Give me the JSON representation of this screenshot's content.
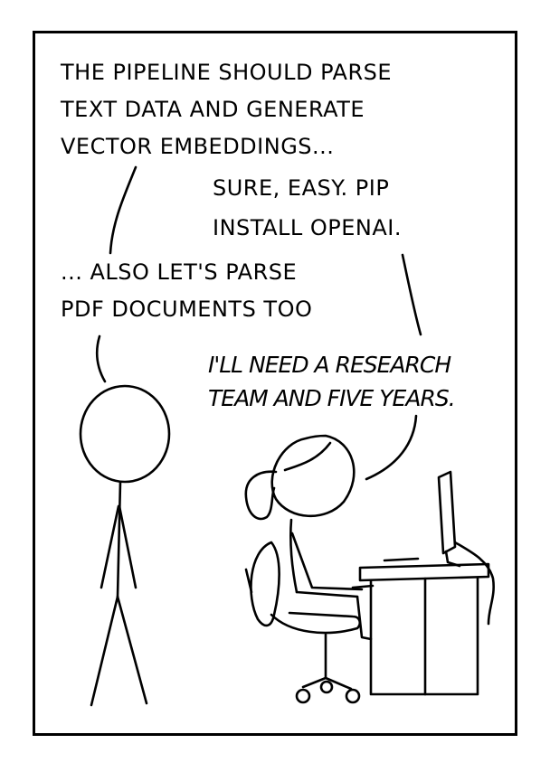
{
  "speech": {
    "line1": [
      "THE PIPELINE SHOULD PARSE",
      "TEXT DATA AND GENERATE",
      "VECTOR EMBEDDINGS..."
    ],
    "line2": [
      "SURE, EASY. PIP",
      "INSTALL OPENAI."
    ],
    "line3": [
      "... ALSO LET'S PARSE",
      "PDF DOCUMENTS TOO"
    ],
    "line4": [
      "I'LL NEED A RESEARCH",
      "TEAM AND FIVE YEARS."
    ]
  },
  "colors": {
    "ink": "#000000",
    "paper": "#ffffff"
  }
}
